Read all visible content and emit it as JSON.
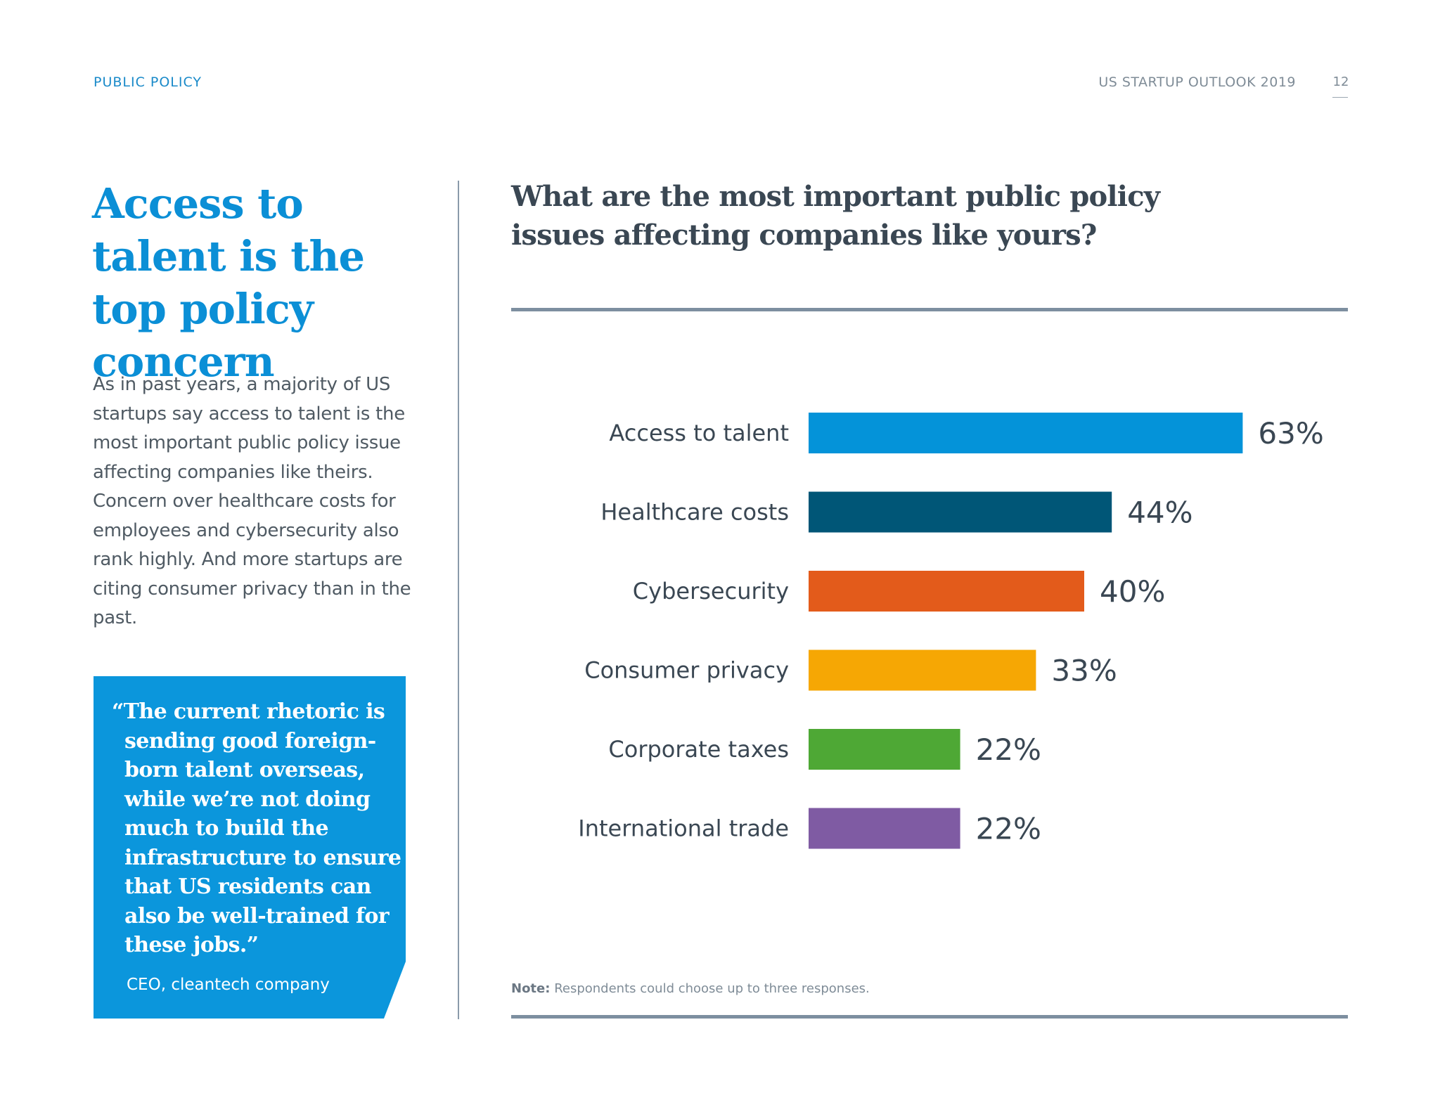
{
  "header": {
    "section_label": "PUBLIC POLICY",
    "report_title": "US STARTUP OUTLOOK 2019",
    "page_number": "12"
  },
  "left": {
    "headline": "Access to talent is the top policy concern",
    "body": "As in past years, a majority of US startups say access to talent is the most important public policy issue affecting companies like theirs. Concern over healthcare costs for employees and cybersecurity also rank highly. And more startups are citing consumer privacy than in the past.",
    "quote": "“The current rhetoric is sending good foreign-born talent overseas, while we’re not doing much to build the infrastructure to ensure that US residents can also be well-trained for these jobs.”",
    "attribution": "CEO, cleantech company"
  },
  "chart": {
    "note_label": "Note:",
    "note_text": "Respondents could choose up to three responses."
  },
  "chart_data": {
    "type": "bar",
    "orientation": "horizontal",
    "title": "What are the most important public policy issues affecting companies like yours?",
    "categories": [
      "Access to talent",
      "Healthcare costs",
      "Cybersecurity",
      "Consumer privacy",
      "Corporate taxes",
      "International trade"
    ],
    "values": [
      63,
      44,
      40,
      33,
      22,
      22
    ],
    "value_labels": [
      "63%",
      "44%",
      "40%",
      "33%",
      "22%",
      "22%"
    ],
    "colors": [
      "#0493d9",
      "#005677",
      "#e35b1b",
      "#f6a704",
      "#4ea835",
      "#7f5ba3"
    ],
    "xlim": [
      0,
      100
    ],
    "unit": "%",
    "grid": false,
    "legend": "none"
  }
}
